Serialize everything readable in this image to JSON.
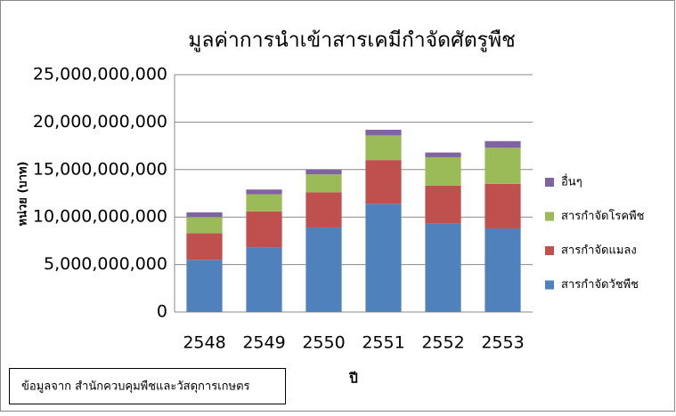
{
  "chart_data": {
    "type": "stacked_bar",
    "title": "มูลค่าการนำเข้าสารเคมีกำจัดศัตรูพืช",
    "y_label": "หน่วย (บาท)",
    "x_label": "ปี",
    "source_note": "ข้อมูลจาก สำนักควบคุมพืชและวัสดุการเกษตร",
    "categories": [
      "2548",
      "2549",
      "2550",
      "2551",
      "2552",
      "2553"
    ],
    "series": [
      {
        "name": "สารกำจัดวัชพืช",
        "color": "#4f81bd",
        "values": [
          5500000000,
          6800000000,
          8900000000,
          11400000000,
          9300000000,
          8800000000
        ]
      },
      {
        "name": "สารกำจัดแมลง",
        "color": "#c0504d",
        "values": [
          2800000000,
          3800000000,
          3700000000,
          4600000000,
          4000000000,
          4700000000
        ]
      },
      {
        "name": "สารกำจัดโรคพืช",
        "color": "#9bbb59",
        "values": [
          1700000000,
          1800000000,
          1900000000,
          2600000000,
          3000000000,
          3800000000
        ]
      },
      {
        "name": "อื่นๆ",
        "color": "#8064a2",
        "values": [
          500000000,
          500000000,
          500000000,
          600000000,
          500000000,
          700000000
        ]
      }
    ],
    "ylim": [
      0,
      25000000000
    ],
    "yticks": [
      0,
      {
        "value": 5000000000,
        "label": "5,000,000,000"
      },
      {
        "value": 10000000000,
        "label": "10,000,000,000"
      },
      {
        "value": 15000000000,
        "label": "15,000,000,000"
      },
      {
        "value": 20000000000,
        "label": "20,000,000,000"
      },
      {
        "value": 25000000000,
        "label": "25,000,000,000"
      }
    ],
    "grid": true,
    "legend": "right"
  }
}
